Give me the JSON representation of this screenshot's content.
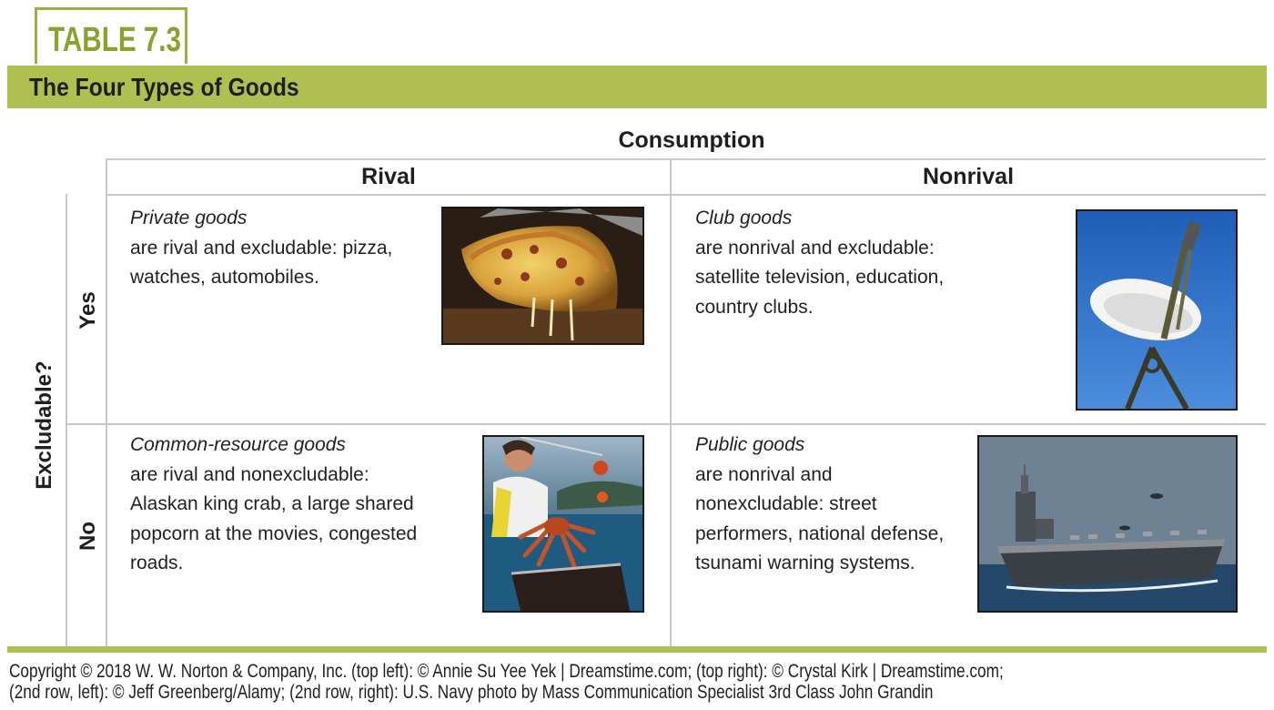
{
  "table_label": "TABLE 7.3",
  "title": "The Four Types of Goods",
  "column_group_label": "Consumption",
  "columns": {
    "rival": "Rival",
    "nonrival": "Nonrival"
  },
  "row_group_label": "Excludable?",
  "rows": {
    "yes": "Yes",
    "no": "No"
  },
  "cells": {
    "private": {
      "title": "Private goods",
      "lines": [
        "are rival and excludable: pizza,",
        "watches, automobiles."
      ],
      "image": "pizza-slice-photo"
    },
    "club": {
      "title": "Club goods",
      "lines": [
        "are nonrival and excludable:",
        "satellite television, education,",
        "country clubs."
      ],
      "image": "satellite-dish-photo"
    },
    "common": {
      "title": "Common-resource goods",
      "lines": [
        "are rival and nonexcludable:",
        "Alaskan king crab, a large shared",
        "popcorn at the movies, congested",
        "roads."
      ],
      "image": "king-crab-fisherman-photo"
    },
    "public": {
      "title": "Public goods",
      "lines": [
        "are nonrival and",
        "nonexcludable: street",
        "performers, national defense,",
        "tsunami warning systems."
      ],
      "image": "aircraft-carrier-photo"
    }
  },
  "footer": [
    "Copyright © 2018 W. W. Norton & Company, Inc. (top left): © Annie Su Yee Yek | Dreamstime.com; (top right): © Crystal Kirk | Dreamstime.com;",
    "(2nd row, left): © Jeff Greenberg/Alamy; (2nd row, right): U.S. Navy photo by Mass Communication Specialist 3rd Class John Grandin"
  ],
  "colors": {
    "accent": "#afbf50",
    "tab_text": "#8aa230",
    "grid": "#c8c8c8"
  }
}
